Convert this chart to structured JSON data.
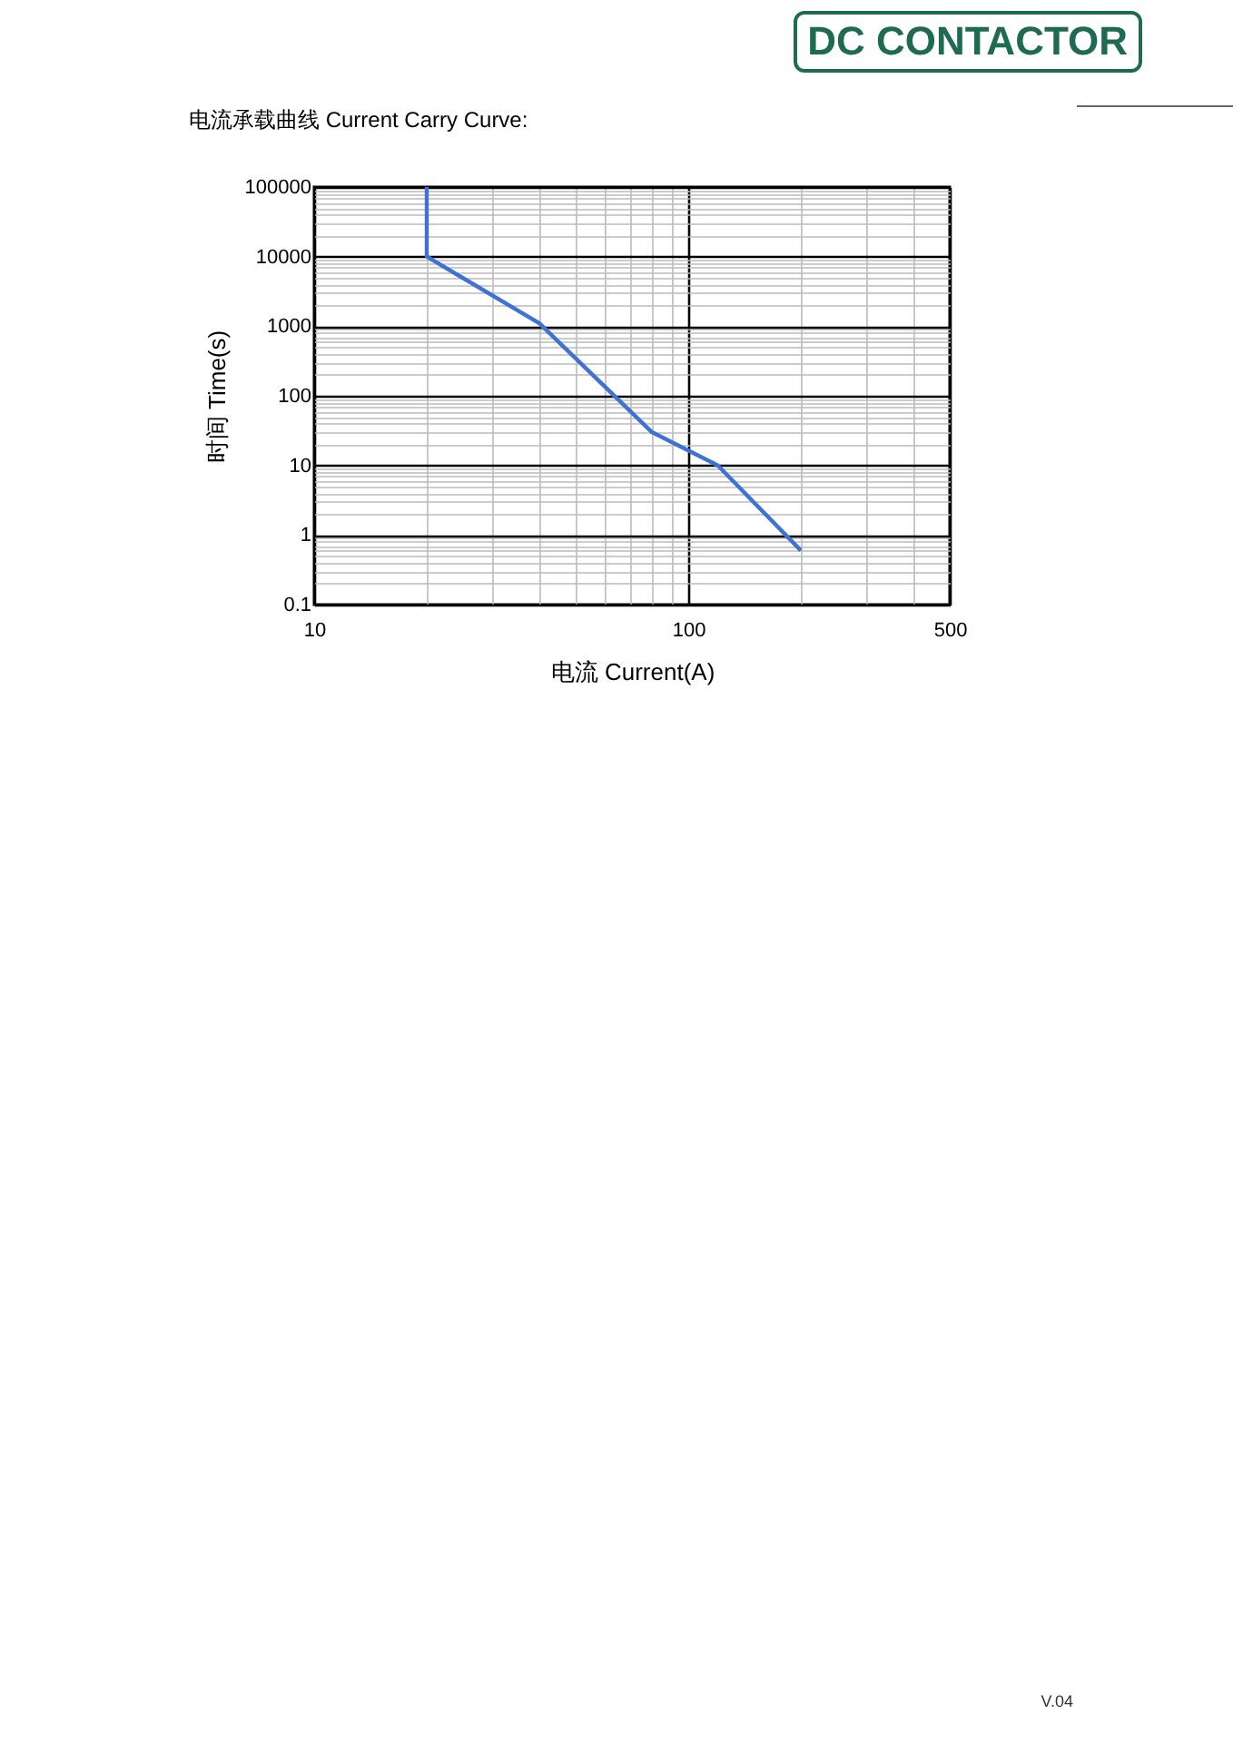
{
  "chart_data": {
    "type": "line",
    "title": "电流承载曲线 Current Carry Curve:",
    "xlabel": "电流 Current(A)",
    "ylabel": "时间 Time(s)",
    "x": [
      20,
      20,
      40,
      80,
      120,
      200
    ],
    "series": [
      {
        "color": "#3f72d4",
        "values": [
          100000,
          10000,
          1100,
          30,
          10,
          0.6
        ]
      }
    ],
    "log": "xy",
    "grid": true,
    "legend": false,
    "xlim": [
      10,
      500
    ],
    "ylim": [
      0.1,
      100000
    ],
    "xticks": [
      10,
      {
        "value": 20,
        "label": null
      },
      {
        "value": 30,
        "label": null
      },
      {
        "value": 40,
        "label": null
      },
      {
        "value": 50,
        "label": null
      },
      {
        "value": 60,
        "label": null
      },
      {
        "value": 70,
        "label": null
      },
      {
        "value": 80,
        "label": null
      },
      {
        "value": 90,
        "label": null
      },
      100,
      {
        "value": 200,
        "label": null
      },
      {
        "value": 300,
        "label": null
      },
      {
        "value": 400,
        "label": null
      },
      500
    ],
    "yticks": [
      0.1,
      {
        "value": 0.2,
        "label": null
      },
      {
        "value": 0.3,
        "label": null
      },
      {
        "value": 0.4,
        "label": null
      },
      {
        "value": 0.5,
        "label": null
      },
      {
        "value": 0.6,
        "label": null
      },
      {
        "value": 0.7,
        "label": null
      },
      {
        "value": 0.8,
        "label": null
      },
      {
        "value": 0.9,
        "label": null
      },
      1,
      {
        "value": 2,
        "label": null
      },
      {
        "value": 3,
        "label": null
      },
      {
        "value": 4,
        "label": null
      },
      {
        "value": 5,
        "label": null
      },
      {
        "value": 6,
        "label": null
      },
      {
        "value": 7,
        "label": null
      },
      {
        "value": 8,
        "label": null
      },
      {
        "value": 9,
        "label": null
      },
      10,
      {
        "value": 20,
        "label": null
      },
      {
        "value": 30,
        "label": null
      },
      {
        "value": 40,
        "label": null
      },
      {
        "value": 50,
        "label": null
      },
      {
        "value": 60,
        "label": null
      },
      {
        "value": 70,
        "label": null
      },
      {
        "value": 80,
        "label": null
      },
      {
        "value": 90,
        "label": null
      },
      100,
      {
        "value": 200,
        "label": null
      },
      {
        "value": 300,
        "label": null
      },
      {
        "value": 400,
        "label": null
      },
      {
        "value": 500,
        "label": null
      },
      {
        "value": 600,
        "label": null
      },
      {
        "value": 700,
        "label": null
      },
      {
        "value": 800,
        "label": null
      },
      {
        "value": 900,
        "label": null
      },
      1000,
      {
        "value": 2000,
        "label": null
      },
      {
        "value": 3000,
        "label": null
      },
      {
        "value": 4000,
        "label": null
      },
      {
        "value": 5000,
        "label": null
      },
      {
        "value": 6000,
        "label": null
      },
      {
        "value": 7000,
        "label": null
      },
      {
        "value": 8000,
        "label": null
      },
      {
        "value": 9000,
        "label": null
      },
      10000,
      {
        "value": 20000,
        "label": null
      },
      {
        "value": 30000,
        "label": null
      },
      {
        "value": 40000,
        "label": null
      },
      {
        "value": 50000,
        "label": null
      },
      {
        "value": 60000,
        "label": null
      },
      {
        "value": 70000,
        "label": null
      },
      {
        "value": 80000,
        "label": null
      },
      {
        "value": 90000,
        "label": null
      },
      100000
    ],
    "annotations": [
      "DC CONTACTOR",
      "V.04"
    ]
  }
}
